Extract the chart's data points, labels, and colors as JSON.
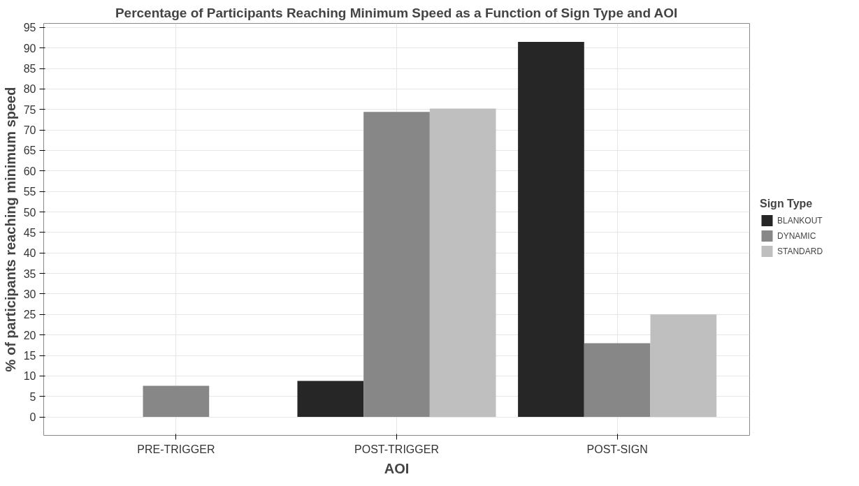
{
  "chart_data": {
    "type": "bar",
    "title": "Percentage of Participants Reaching Minimum Speed as a Function of Sign Type and AOI",
    "xlabel": "AOI",
    "ylabel": "% of participants reaching minimum speed",
    "legend_title": "Sign Type",
    "categories": [
      "PRE-TRIGGER",
      "POST-TRIGGER",
      "POST-SIGN"
    ],
    "series": [
      {
        "name": "BLANKOUT",
        "color": "#262626",
        "values": [
          null,
          8.8,
          91.5
        ]
      },
      {
        "name": "DYNAMIC",
        "color": "#878787",
        "values": [
          7.6,
          74.4,
          18
        ]
      },
      {
        "name": "STANDARD",
        "color": "#bfbfbf",
        "values": [
          null,
          75.2,
          25
        ]
      }
    ],
    "ylim": [
      -4.5,
      96
    ],
    "yticks": [
      0,
      5,
      10,
      15,
      20,
      25,
      30,
      35,
      40,
      45,
      50,
      55,
      60,
      65,
      70,
      75,
      80,
      85,
      90,
      95
    ],
    "grid": true,
    "legend": "right"
  }
}
